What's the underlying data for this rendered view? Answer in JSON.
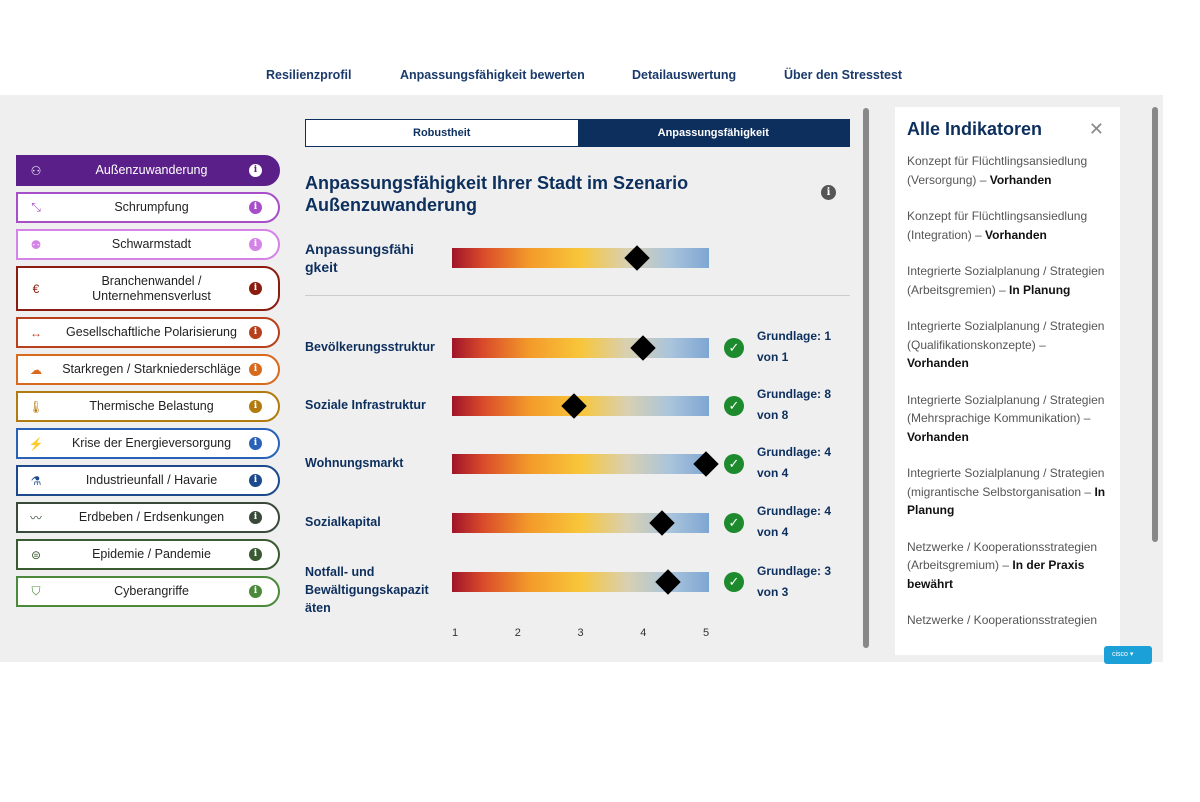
{
  "nav": [
    "Resilienzprofil",
    "Anpassungsfähigkeit bewerten",
    "Detailauswertung",
    "Über den Stresstest"
  ],
  "hazards": [
    {
      "label": "Außenzuwanderung",
      "icon": "people-icon",
      "color": "#5b1f8a",
      "active": true
    },
    {
      "label": "Schrumpfung",
      "icon": "shrink-arrows-icon",
      "color": "#a74fc9"
    },
    {
      "label": "Schwarmstadt",
      "icon": "group-icon",
      "color": "#d483e6"
    },
    {
      "label": "Branchenwandel / Unternehmensverlust",
      "icon": "euro-cycle-icon",
      "color": "#8a1c10",
      "tall": true
    },
    {
      "label": "Gesellschaftliche Polarisierung",
      "icon": "arrows-apart-icon",
      "color": "#b8401c"
    },
    {
      "label": "Starkregen / Starkniederschläge",
      "icon": "rain-cloud-icon",
      "color": "#d86a1e"
    },
    {
      "label": "Thermische Belastung",
      "icon": "thermometer-icon",
      "color": "#b37a10"
    },
    {
      "label": "Krise der Energieversorgung",
      "icon": "power-off-icon",
      "color": "#2a62b8"
    },
    {
      "label": "Industrieunfall / Havarie",
      "icon": "test-tube-icon",
      "color": "#1d4a8c"
    },
    {
      "label": "Erdbeben / Erdsenkungen",
      "icon": "earthquake-icon",
      "color": "#3a4a3a"
    },
    {
      "label": "Epidemie / Pandemie",
      "icon": "mask-icon",
      "color": "#3a5a32"
    },
    {
      "label": "Cyberangriffe",
      "icon": "shield-icon",
      "color": "#4a8a3a"
    }
  ],
  "tabs": [
    "Robustheit",
    "Anpassungsfähigkeit"
  ],
  "title": "Anpassungsfähigkeit Ihrer Stadt im Szenario Außenzuwanderung",
  "overall": {
    "label": "Anpassungsfähi gkeit",
    "value": 3.9
  },
  "rows": [
    {
      "label": "Bevölkerungsstruktur",
      "value": 4.0,
      "basis": "Grundlage: 1 von 1"
    },
    {
      "label": "Soziale Infrastruktur",
      "value": 2.9,
      "basis": "Grundlage: 8 von 8"
    },
    {
      "label": "Wohnungsmarkt",
      "value": 5.0,
      "basis": "Grundlage: 4 von 4"
    },
    {
      "label": "Sozialkapital",
      "value": 4.3,
      "basis": "Grundlage: 4 von 4"
    },
    {
      "label": "Notfall- und Bewältigungskapazit äten",
      "value": 4.4,
      "basis": "Grundlage: 3 von 3"
    }
  ],
  "scale": [
    "1",
    "2",
    "3",
    "4",
    "5"
  ],
  "panel": {
    "title": "Alle Indikatoren",
    "items": [
      {
        "text": "Konzept für Flüchtlingsansiedlung (Versorgung) – ",
        "status": "Vorhanden"
      },
      {
        "text": "Konzept für Flüchtlingsansiedlung (Integration) – ",
        "status": "Vorhanden"
      },
      {
        "text": "Integrierte Sozialplanung / Strategien (Arbeitsgremien) – ",
        "status": "In Planung"
      },
      {
        "text": "Integrierte Sozialplanung / Strategien (Qualifikationskonzepte) – ",
        "status": "Vorhanden"
      },
      {
        "text": "Integrierte Sozialplanung / Strategien (Mehrsprachige Kommunikation) – ",
        "status": "Vorhanden"
      },
      {
        "text": "Integrierte Sozialplanung / Strategien (migrantische Selbstorganisation – ",
        "status": "In Planung"
      },
      {
        "text": "Netzwerke / Kooperationsstrategien (Arbeitsgremium) – ",
        "status": "In der Praxis bewährt"
      },
      {
        "text": "Netzwerke / Kooperationsstrategien",
        "status": ""
      }
    ]
  },
  "cisco": "cisco"
}
